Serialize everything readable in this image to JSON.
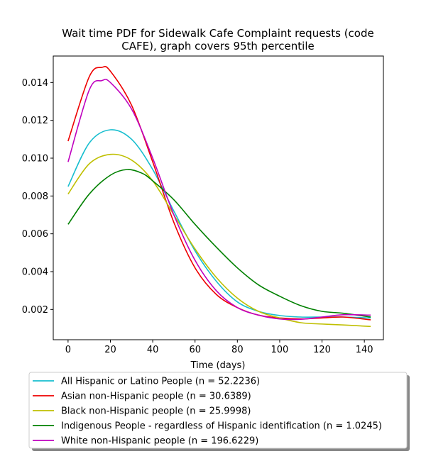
{
  "chart_data": {
    "type": "line",
    "title_lines": [
      "Wait time PDF for Sidewalk Cafe Complaint  requests (code",
      "CAFE), graph covers 95th percentile"
    ],
    "xlabel": "Time (days)",
    "ylabel": "",
    "xlim": [
      -7,
      149
    ],
    "ylim": [
      0.0004,
      0.0154
    ],
    "xticks": [
      0,
      20,
      40,
      60,
      80,
      100,
      120,
      140
    ],
    "yticks": [
      0.002,
      0.004,
      0.006,
      0.008,
      0.01,
      0.012,
      0.014
    ],
    "ytick_labels": [
      "0.002",
      "0.004",
      "0.006",
      "0.008",
      "0.010",
      "0.012",
      "0.014"
    ],
    "grid": false,
    "legend_position": "below-plot",
    "series": [
      {
        "name": "All Hispanic or Latino People (n = 52.2236)",
        "color": "#17becf",
        "x": [
          0,
          10,
          20,
          30,
          40,
          50,
          60,
          70,
          80,
          90,
          100,
          110,
          120,
          130,
          143
        ],
        "y": [
          0.0085,
          0.0108,
          0.0115,
          0.011,
          0.0094,
          0.0072,
          0.0051,
          0.0035,
          0.0024,
          0.0019,
          0.00168,
          0.0016,
          0.0016,
          0.0016,
          0.00155
        ]
      },
      {
        "name": "Asian non-Hispanic people (n = 30.6389)",
        "color": "#ee0000",
        "x": [
          0,
          10,
          16,
          20,
          30,
          40,
          50,
          60,
          70,
          80,
          90,
          100,
          110,
          120,
          130,
          143
        ],
        "y": [
          0.0109,
          0.0143,
          0.0148,
          0.0146,
          0.0128,
          0.0098,
          0.0066,
          0.0042,
          0.0028,
          0.0021,
          0.0017,
          0.00155,
          0.0015,
          0.00155,
          0.0016,
          0.00145
        ]
      },
      {
        "name": "Black non-Hispanic people (n = 25.9998)",
        "color": "#bfbf00",
        "x": [
          0,
          10,
          20,
          30,
          40,
          50,
          60,
          70,
          80,
          90,
          100,
          110,
          120,
          130,
          143
        ],
        "y": [
          0.0081,
          0.0097,
          0.0102,
          0.0099,
          0.0088,
          0.007,
          0.0052,
          0.0037,
          0.0026,
          0.0019,
          0.00155,
          0.0013,
          0.00123,
          0.00118,
          0.0011
        ]
      },
      {
        "name": "Indigenous People - regardless of Hispanic identification (n = 1.0245)",
        "color": "#008000",
        "x": [
          0,
          10,
          20,
          28,
          35,
          40,
          50,
          60,
          70,
          80,
          90,
          100,
          110,
          120,
          130,
          143
        ],
        "y": [
          0.0065,
          0.0081,
          0.0091,
          0.0094,
          0.0092,
          0.0088,
          0.0078,
          0.0065,
          0.0053,
          0.0042,
          0.0033,
          0.0027,
          0.0022,
          0.0019,
          0.0018,
          0.0016
        ]
      },
      {
        "name": "White non-Hispanic people (n = 196.6229)",
        "color": "#bf00bf",
        "x": [
          0,
          10,
          16,
          20,
          30,
          40,
          50,
          60,
          70,
          80,
          90,
          100,
          110,
          120,
          130,
          143
        ],
        "y": [
          0.0098,
          0.0136,
          0.0141,
          0.014,
          0.0126,
          0.01,
          0.007,
          0.0046,
          0.003,
          0.0021,
          0.0017,
          0.0015,
          0.00148,
          0.0016,
          0.00172,
          0.0017
        ]
      }
    ]
  }
}
